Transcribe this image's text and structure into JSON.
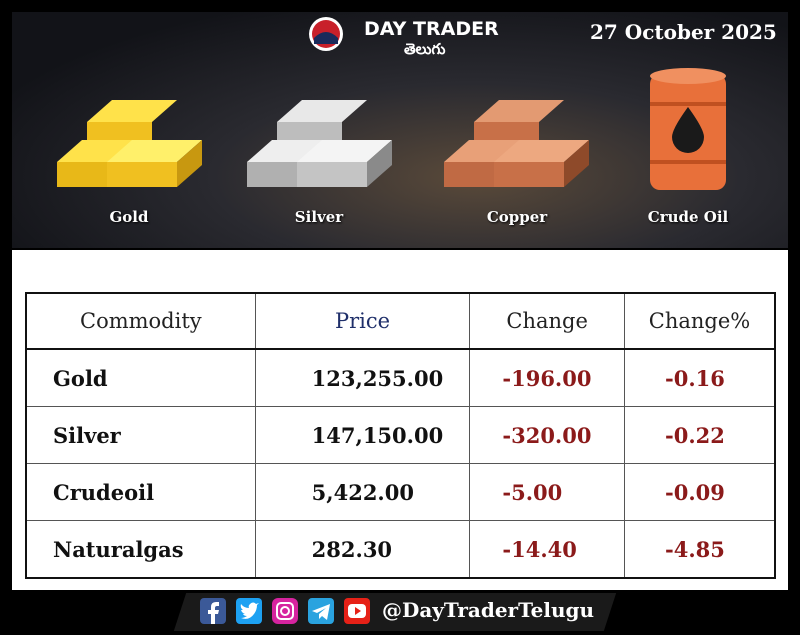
{
  "header": {
    "brand": "DAY TRADER",
    "brand_sub": "తెలుగు",
    "date": "27 October 2025"
  },
  "commodities": [
    "Gold",
    "Silver",
    "Copper",
    "Crude Oil"
  ],
  "table": {
    "columns": [
      "Commodity",
      "Price",
      "Change",
      "Change%"
    ],
    "rows": [
      [
        "Gold",
        "123,255.00",
        "-196.00",
        "-0.16"
      ],
      [
        "Silver",
        "147,150.00",
        "-320.00",
        "-0.22"
      ],
      [
        "Crudeoil",
        "5,422.00",
        "-5.00",
        "-0.09"
      ],
      [
        "Naturalgas",
        "282.30",
        "-14.40",
        "-4.85"
      ]
    ]
  },
  "footer": {
    "handle": "@DayTraderTelugu"
  }
}
